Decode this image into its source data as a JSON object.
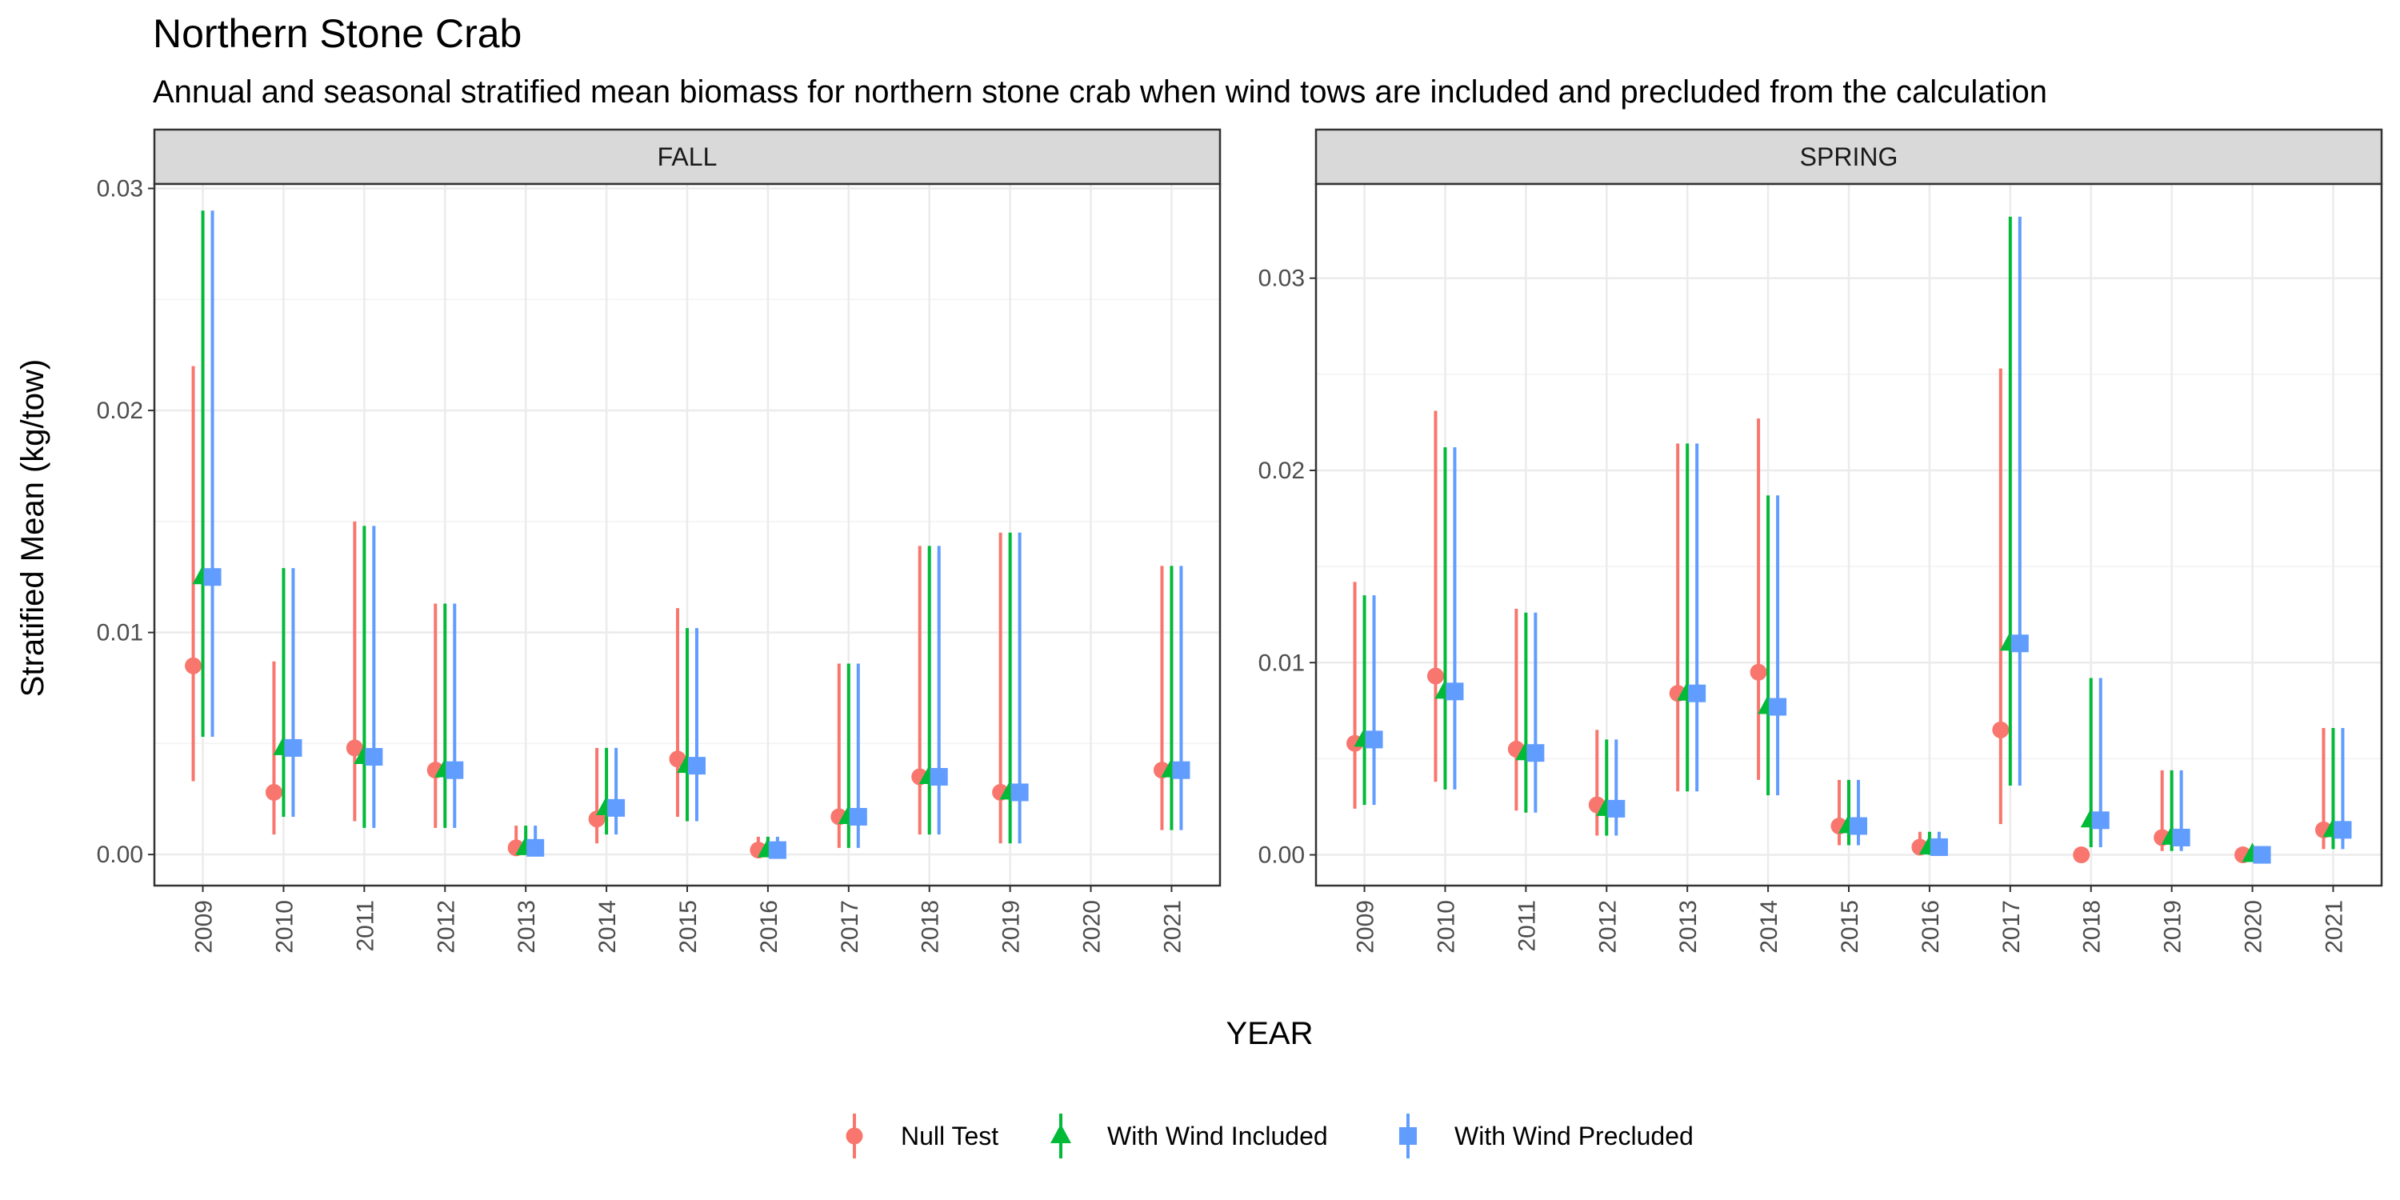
{
  "chart_data": {
    "type": "scatter",
    "title": "Northern Stone Crab",
    "subtitle": "Annual and seasonal stratified mean biomass for northern stone crab when wind tows are included and precluded from the calculation",
    "xlabel": "YEAR",
    "ylabel": "Stratified Mean (kg/tow)",
    "categories": [
      "2009",
      "2010",
      "2011",
      "2012",
      "2013",
      "2014",
      "2015",
      "2016",
      "2017",
      "2018",
      "2019",
      "2020",
      "2021"
    ],
    "legend": {
      "position": "bottom",
      "entries": [
        "Null Test",
        "With Wind Included",
        "With Wind Precluded"
      ]
    },
    "colors": {
      "Null Test": "#F8766D",
      "With Wind Included": "#00BA38",
      "With Wind Precluded": "#619CFF"
    },
    "grid": true,
    "panels": [
      {
        "name": "FALL",
        "ylim": [
          -0.0014,
          0.0302
        ],
        "yticks": [
          0.0,
          0.01,
          0.02,
          0.03
        ],
        "ytick_labels": [
          "0.00",
          "0.01",
          "0.02",
          "0.03"
        ],
        "series": [
          {
            "name": "Null Test",
            "shape": "circle",
            "mean": [
              0.0085,
              0.0028,
              0.0048,
              0.0038,
              0.0003,
              0.0016,
              0.0043,
              0.0002,
              0.0017,
              0.0035,
              0.0028,
              null,
              0.0038
            ],
            "lower": [
              0.0033,
              0.0009,
              0.0015,
              0.0012,
              0.0,
              0.0005,
              0.0017,
              0.0,
              0.0003,
              0.0009,
              0.0005,
              null,
              0.0011
            ],
            "upper": [
              0.022,
              0.0087,
              0.015,
              0.0113,
              0.0013,
              0.0048,
              0.0111,
              0.0008,
              0.0086,
              0.0139,
              0.0145,
              null,
              0.013
            ]
          },
          {
            "name": "With Wind Included",
            "shape": "triangle",
            "mean": [
              0.0125,
              0.0048,
              0.0044,
              0.0038,
              0.0003,
              0.0021,
              0.004,
              0.0002,
              0.0017,
              0.0035,
              0.0028,
              null,
              0.0038
            ],
            "lower": [
              0.0053,
              0.0017,
              0.0012,
              0.0012,
              0.0,
              0.0009,
              0.0015,
              0.0,
              0.0003,
              0.0009,
              0.0005,
              null,
              0.0011
            ],
            "upper": [
              0.029,
              0.0129,
              0.0148,
              0.0113,
              0.0013,
              0.0048,
              0.0102,
              0.0008,
              0.0086,
              0.0139,
              0.0145,
              null,
              0.013
            ]
          },
          {
            "name": "With Wind Precluded",
            "shape": "square",
            "mean": [
              0.0125,
              0.0048,
              0.0044,
              0.0038,
              0.0003,
              0.0021,
              0.004,
              0.0002,
              0.0017,
              0.0035,
              0.0028,
              null,
              0.0038
            ],
            "lower": [
              0.0053,
              0.0017,
              0.0012,
              0.0012,
              0.0,
              0.0009,
              0.0015,
              0.0,
              0.0003,
              0.0009,
              0.0005,
              null,
              0.0011
            ],
            "upper": [
              0.029,
              0.0129,
              0.0148,
              0.0113,
              0.0013,
              0.0048,
              0.0102,
              0.0008,
              0.0086,
              0.0139,
              0.0145,
              null,
              0.013
            ]
          }
        ]
      },
      {
        "name": "SPRING",
        "ylim": [
          -0.0016,
          0.0349
        ],
        "yticks": [
          0.0,
          0.01,
          0.02,
          0.03
        ],
        "ytick_labels": [
          "0.00",
          "0.01",
          "0.02",
          "0.03"
        ],
        "series": [
          {
            "name": "Null Test",
            "shape": "circle",
            "mean": [
              0.0058,
              0.0093,
              0.0055,
              0.0026,
              0.0084,
              0.0095,
              0.0015,
              0.0004,
              0.0065,
              0.0,
              0.0009,
              0.0,
              0.0013
            ],
            "lower": [
              0.0024,
              0.0038,
              0.0023,
              0.001,
              0.0033,
              0.0039,
              0.0005,
              0.0,
              0.0016,
              0.0,
              0.0002,
              0.0,
              0.0003
            ],
            "upper": [
              0.0142,
              0.0231,
              0.0128,
              0.0065,
              0.0214,
              0.0227,
              0.0039,
              0.0012,
              0.0253,
              0.0,
              0.0044,
              0.0,
              0.0066
            ]
          },
          {
            "name": "With Wind Included",
            "shape": "triangle",
            "mean": [
              0.006,
              0.0085,
              0.0053,
              0.0024,
              0.0084,
              0.0077,
              0.0015,
              0.0004,
              0.011,
              0.0018,
              0.0009,
              0.0,
              0.0013
            ],
            "lower": [
              0.0026,
              0.0034,
              0.0022,
              0.001,
              0.0033,
              0.0031,
              0.0005,
              0.0,
              0.0036,
              0.0004,
              0.0002,
              0.0,
              0.0003
            ],
            "upper": [
              0.0135,
              0.0212,
              0.0126,
              0.006,
              0.0214,
              0.0187,
              0.0039,
              0.0012,
              0.0332,
              0.0092,
              0.0044,
              0.0,
              0.0066
            ]
          },
          {
            "name": "With Wind Precluded",
            "shape": "square",
            "mean": [
              0.006,
              0.0085,
              0.0053,
              0.0024,
              0.0084,
              0.0077,
              0.0015,
              0.0004,
              0.011,
              0.0018,
              0.0009,
              0.0,
              0.0013
            ],
            "lower": [
              0.0026,
              0.0034,
              0.0022,
              0.001,
              0.0033,
              0.0031,
              0.0005,
              0.0,
              0.0036,
              0.0004,
              0.0002,
              0.0,
              0.0003
            ],
            "upper": [
              0.0135,
              0.0212,
              0.0126,
              0.006,
              0.0214,
              0.0187,
              0.0039,
              0.0012,
              0.0332,
              0.0092,
              0.0044,
              0.0,
              0.0066
            ]
          }
        ]
      }
    ]
  }
}
